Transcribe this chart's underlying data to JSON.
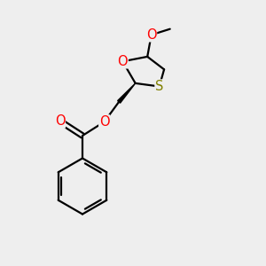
{
  "bg_color": "#eeeeee",
  "bond_color": "#000000",
  "O_color": "#ff0000",
  "S_color": "#808000",
  "bond_width": 1.6,
  "font_size": 10.5,
  "figsize": [
    3.0,
    3.0
  ],
  "dpi": 100,
  "xlim": [
    0,
    10
  ],
  "ylim": [
    0,
    10
  ]
}
